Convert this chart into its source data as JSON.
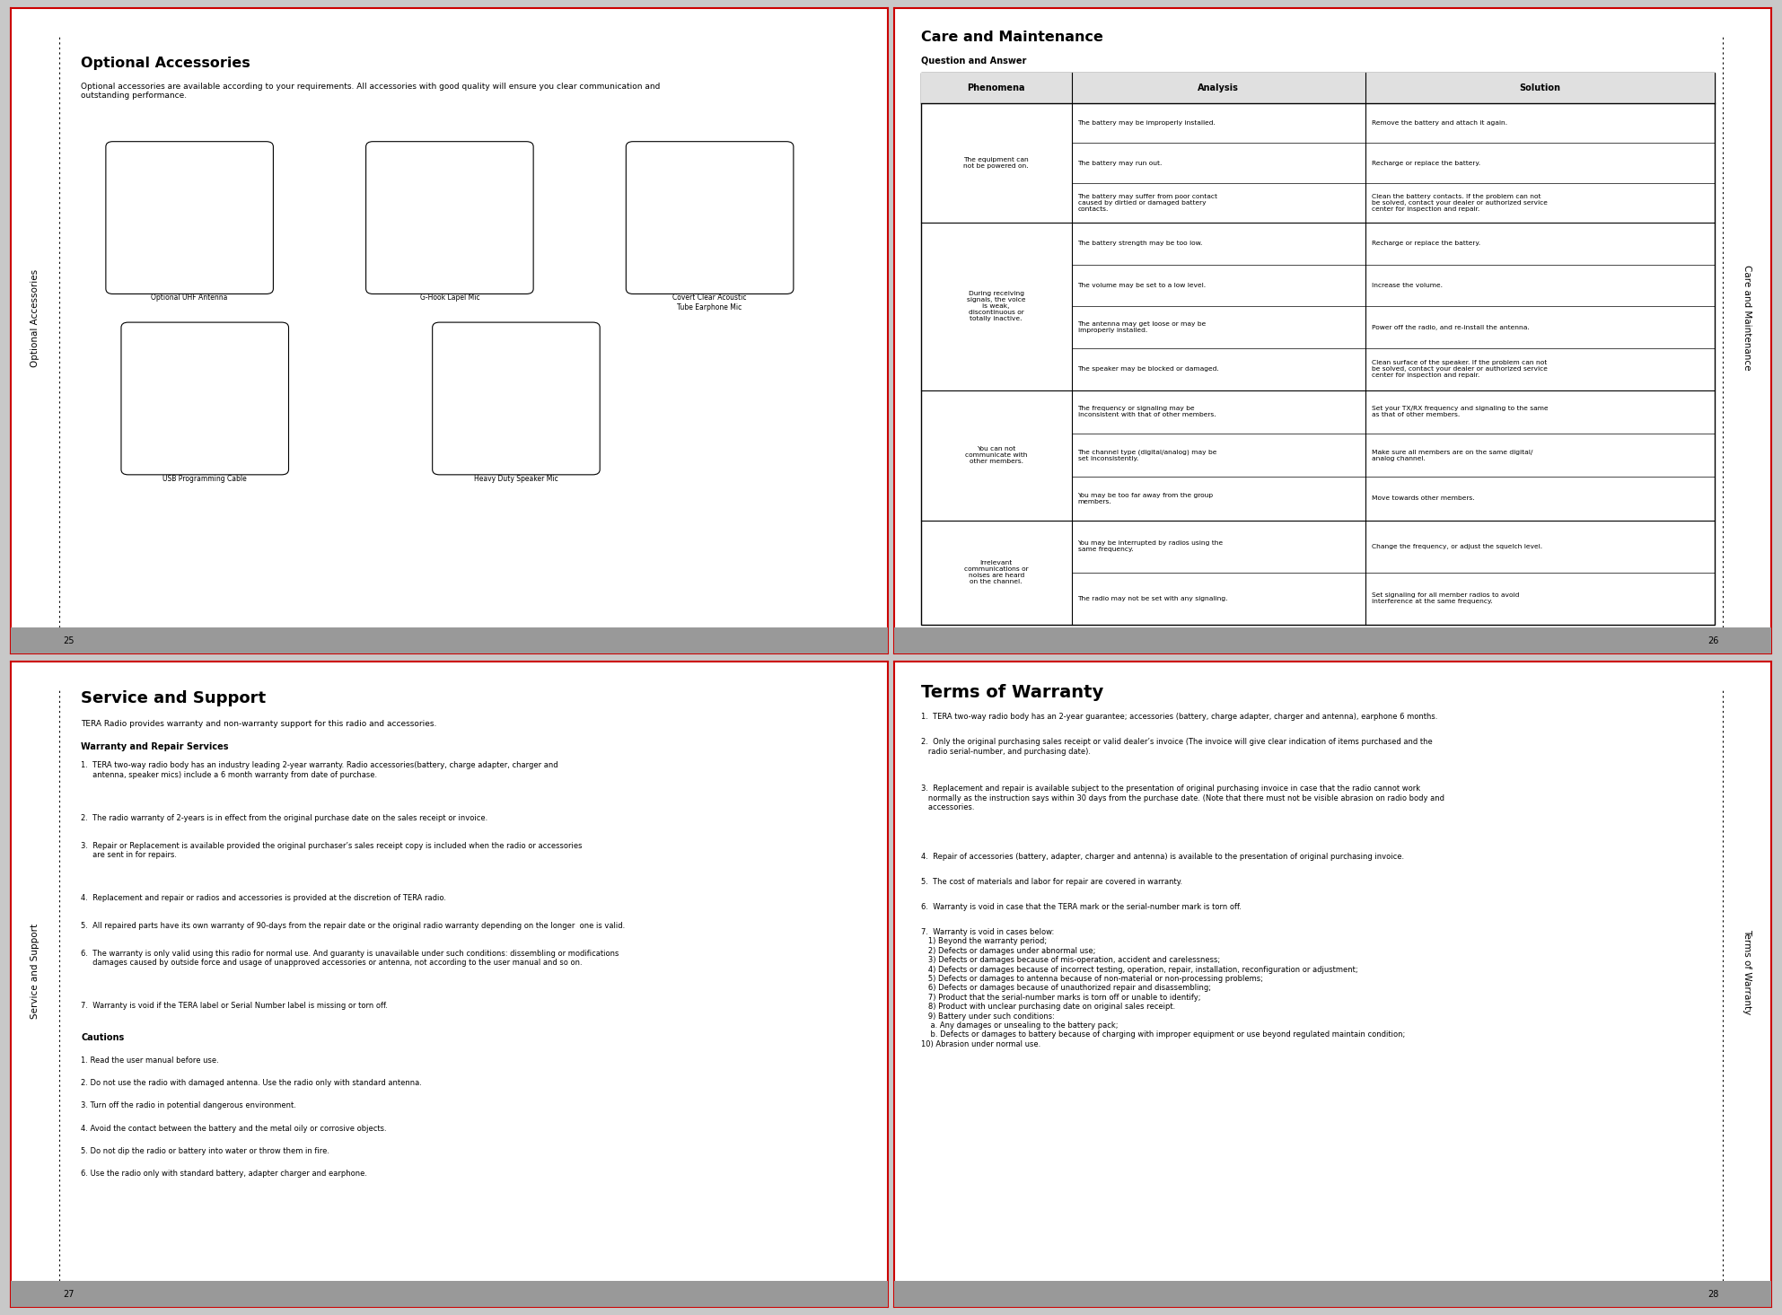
{
  "bg_color": "#ffffff",
  "outer_bg": "#c8c8c8",
  "border_color": "#dd0000",
  "page_bg": "#ffffff",
  "top_left_page_num": "25",
  "top_right_page_num": "26",
  "bottom_left_page_num": "27",
  "bottom_right_page_num": "28",
  "opt_acc_title": "Optional Accessories",
  "opt_acc_body": "Optional accessories are available according to your requirements. All accessories with good quality will ensure you clear communication and\noutstanding performance.",
  "opt_acc_sidebar": "Optional Accessories",
  "opt_acc_items": [
    "Optional UHF Antenna",
    "G-Hook Lapel Mic",
    "Covert Clear Acoustic\nTube Earphone Mic",
    "USB Programming Cable",
    "Heavy Duty Speaker Mic"
  ],
  "care_title": "Care and Maintenance",
  "care_subtitle": "Question and Answer",
  "care_sidebar": "Care and Maintenance",
  "table_header": [
    "Phenomena",
    "Analysis",
    "Solution"
  ],
  "table_rows": [
    {
      "phenomena": "The equipment can\nnot be powered on.",
      "analyses": [
        "The battery may be improperly installed.",
        "The battery may run out.",
        "The battery may suffer from poor contact\ncaused by dirtied or damaged battery\ncontacts."
      ],
      "solutions": [
        "Remove the battery and attach it again.",
        "Recharge or replace the battery.",
        "Clean the battery contacts. If the problem can not\nbe solved, contact your dealer or authorized service\ncenter for inspection and repair."
      ]
    },
    {
      "phenomena": "During receiving\nsignals, the voice\nis weak,\ndiscontinuous or\ntotally inactive.",
      "analyses": [
        "The battery strength may be too low.",
        "The volume may be set to a low level.",
        "The antenna may get loose or may be\nimproperly installed.",
        "The speaker may be blocked or damaged."
      ],
      "solutions": [
        "Recharge or replace the battery.",
        "Increase the volume.",
        "Power off the radio, and re-install the antenna.",
        "Clean surface of the speaker. If the problem can not\nbe solved, contact your dealer or authorized service\ncenter for inspection and repair."
      ]
    },
    {
      "phenomena": "You can not\ncommunicate with\nother members.",
      "analyses": [
        "The frequency or signaling may be\ninconsistent with that of other members.",
        "The channel type (digital/analog) may be\nset inconsistently.",
        "You may be too far away from the group\nmembers."
      ],
      "solutions": [
        "Set your TX/RX frequency and signaling to the same\nas that of other members.",
        "Make sure all members are on the same digital/\nanalog channel.",
        "Move towards other members."
      ]
    },
    {
      "phenomena": "Irrelevant\ncommunications or\nnoises are heard\non the channel.",
      "analyses": [
        "You may be interrupted by radios using the\nsame frequency.",
        "The radio may not be set with any signaling."
      ],
      "solutions": [
        "Change the frequency, or adjust the squelch level.",
        "Set signaling for all member radios to avoid\ninterference at the same frequency."
      ]
    }
  ],
  "service_title": "Service and Support",
  "service_body_intro": "TERA Radio provides warranty and non-warranty support for this radio and accessories.",
  "service_warranty_title": "Warranty and Repair Services",
  "service_warranty_items": [
    "TERA two-way radio body has an industry leading 2-year warranty. Radio accessories(battery, charge adapter, charger and\n     antenna, speaker mics) include a 6 month warranty from date of purchase.",
    "The radio warranty of 2-years is in effect from the original purchase date on the sales receipt or invoice.",
    "Repair or Replacement is available provided the original purchaser’s sales receipt copy is included when the radio or accessories\n     are sent in for repairs.",
    "Replacement and repair or radios and accessories is provided at the discretion of TERA radio.",
    "All repaired parts have its own warranty of 90-days from the repair date or the original radio warranty depending on the longer  one is valid.",
    "The warranty is only valid using this radio for normal use. And guaranty is unavailable under such conditions: dissembling or modifications\n     damages caused by outside force and usage of unapproved accessories or antenna, not according to the user manual and so on.",
    "Warranty is void if the TERA label or Serial Number label is missing or torn off."
  ],
  "service_cautions_title": "Cautions",
  "service_cautions_items": [
    "Read the user manual before use.",
    "Do not use the radio with damaged antenna. Use the radio only with standard antenna.",
    "Turn off the radio in potential dangerous environment.",
    "Avoid the contact between the battery and the metal oily or corrosive objects.",
    "Do not dip the radio or battery into water or throw them in fire.",
    "Use the radio only with standard battery, adapter charger and earphone."
  ],
  "service_sidebar": "Service and Support",
  "terms_title": "Terms of Warranty",
  "terms_sidebar": "Terms of Warranty",
  "terms_items": [
    "TERA two-way radio body has an 2-year guarantee; accessories (battery, charge adapter, charger and antenna), earphone 6 months.",
    "Only the original purchasing sales receipt or valid dealer’s invoice (The invoice will give clear indication of items purchased and the\n   radio serial-number, and purchasing date).",
    "Replacement and repair is available subject to the presentation of original purchasing invoice in case that the radio cannot work\n   normally as the instruction says within 30 days from the purchase date. (Note that there must not be visible abrasion on radio body and\n   accessories.",
    "Repair of accessories (battery, adapter, charger and antenna) is available to the presentation of original purchasing invoice.",
    "The cost of materials and labor for repair are covered in warranty.",
    "Warranty is void in case that the TERA mark or the serial-number mark is torn off.",
    "Warranty is void in cases below:\n   1) Beyond the warranty period;\n   2) Defects or damages under abnormal use;\n   3) Defects or damages because of mis-operation, accident and carelessness;\n   4) Defects or damages because of incorrect testing, operation, repair, installation, reconfiguration or adjustment;\n   5) Defects or damages to antenna because of non-material or non-processing problems;\n   6) Defects or damages because of unauthorized repair and disassembling;\n   7) Product that the serial-number marks is torn off or unable to identify;\n   8) Product with unclear purchasing date on original sales receipt.\n   9) Battery under such conditions:\n    a. Any damages or unsealing to the battery pack;\n    b. Defects or damages to battery because of charging with improper equipment or use beyond regulated maintain condition;\n10) Abrasion under normal use."
  ]
}
